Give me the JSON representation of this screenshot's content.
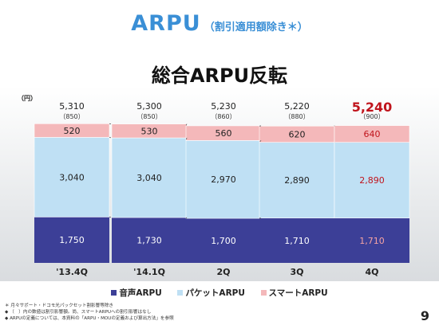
{
  "header": {
    "title": "ARPU",
    "subtitle": "（割引適用額除き＊）",
    "headline": "総合ARPU反転"
  },
  "legend": {
    "voice": "音声ARPU",
    "packet": "パケットARPU",
    "smart": "スマートARPU"
  },
  "notes": [
    "＊ 月々サポート・ドコモ光パックセット割影響等除き",
    "◆ （　）内の数値は割引影響額。尚、スマートARPUへの割引影響はなし",
    "◆ ARPUの定義については、本資料の「ARPU・MOUの定義および算出方法」を参照"
  ],
  "page_number": "9",
  "chart_data": {
    "type": "bar",
    "stacked": true,
    "ylabel": "（円）",
    "categories": [
      "'13.4Q",
      "'14.1Q",
      "2Q",
      "3Q",
      "4Q"
    ],
    "series": [
      {
        "name": "音声ARPU",
        "values": [
          1750,
          1730,
          1700,
          1710,
          1710
        ]
      },
      {
        "name": "パケットARPU",
        "values": [
          3040,
          3040,
          2970,
          2890,
          2890
        ]
      },
      {
        "name": "スマートARPU",
        "values": [
          520,
          530,
          560,
          620,
          640
        ]
      }
    ],
    "totals": [
      "5,310",
      "5,300",
      "5,230",
      "5,220",
      "5,240"
    ],
    "discount_impact": [
      "（850）",
      "（850）",
      "（860）",
      "（880）",
      "（900）"
    ],
    "highlight_index": 4,
    "colors": {
      "voice": "#3c3f97",
      "packet": "#bfe0f4",
      "smart": "#f4b8ba",
      "highlight_text": "#c0141c"
    },
    "ylim": [
      0,
      5400
    ]
  }
}
